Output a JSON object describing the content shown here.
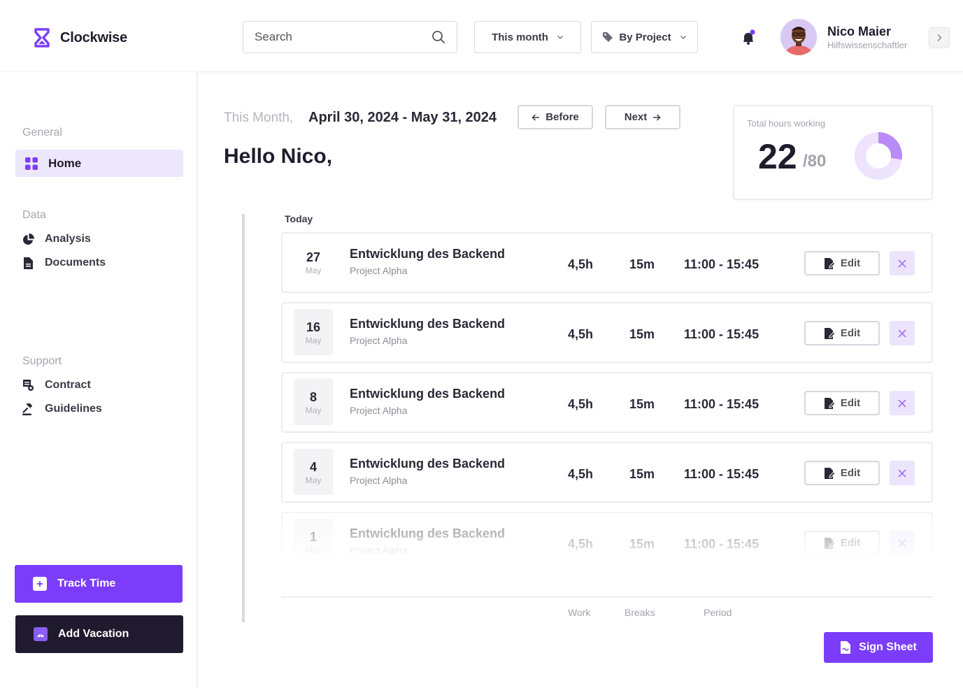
{
  "app": {
    "name": "Clockwise"
  },
  "header": {
    "search_placeholder": "Search",
    "period_filter": "This month",
    "group_filter": "By Project",
    "user": {
      "name": "Nico Maier",
      "role": "Hilfswissenschaftler"
    }
  },
  "sidebar": {
    "general_label": "General",
    "home_label": "Home",
    "data_label": "Data",
    "data_items": [
      "Analysis",
      "Documents"
    ],
    "support_label": "Support",
    "support_items": [
      "Contract",
      "Guidelines"
    ],
    "track_time_label": "Track Time",
    "add_vacation_label": "Add Vacation"
  },
  "main": {
    "range_label": "This Month,",
    "range_value": "April 30, 2024 - May 31, 2024",
    "before_label": "Before",
    "next_label": "Next",
    "greeting": "Hello Nico,",
    "hours_card": {
      "title": "Total hours working",
      "value": "22",
      "total": "/80",
      "fraction": 0.275
    },
    "today_label": "Today",
    "entries": [
      {
        "day": "27",
        "month": "May",
        "title": "Entwicklung des Backend",
        "project": "Project Alpha",
        "work": "4,5h",
        "breaks": "15m",
        "period": "11:00 - 15:45",
        "edit_label": "Edit"
      },
      {
        "day": "16",
        "month": "May",
        "title": "Entwicklung des Backend",
        "project": "Project Alpha",
        "work": "4,5h",
        "breaks": "15m",
        "period": "11:00 - 15:45",
        "edit_label": "Edit"
      },
      {
        "day": "8",
        "month": "May",
        "title": "Entwicklung des Backend",
        "project": "Project Alpha",
        "work": "4,5h",
        "breaks": "15m",
        "period": "11:00 - 15:45",
        "edit_label": "Edit"
      },
      {
        "day": "4",
        "month": "May",
        "title": "Entwicklung des Backend",
        "project": "Project Alpha",
        "work": "4,5h",
        "breaks": "15m",
        "period": "11:00 - 15:45",
        "edit_label": "Edit"
      },
      {
        "day": "1",
        "month": "May",
        "title": "Entwicklung des Backend",
        "project": "Project Alpha",
        "work": "4,5h",
        "breaks": "15m",
        "period": "11:00 - 15:45",
        "edit_label": "Edit"
      }
    ],
    "columns": {
      "work": "Work",
      "breaks": "Breaks",
      "period": "Period"
    },
    "sign_sheet_label": "Sign Sheet"
  },
  "colors": {
    "accent": "#7c3dfb",
    "accent_light": "#ede7fd",
    "dark": "#201a2e"
  }
}
